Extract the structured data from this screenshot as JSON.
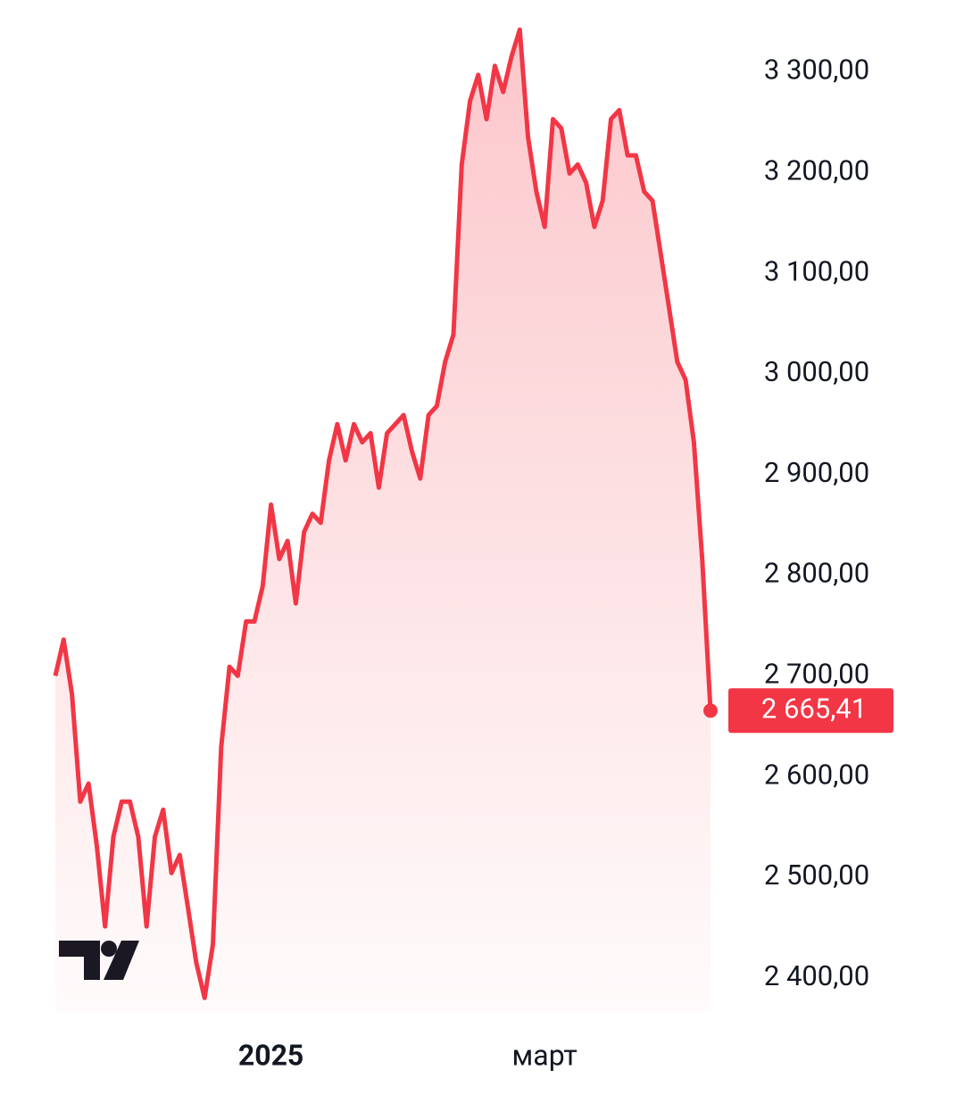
{
  "chart_data": {
    "type": "line",
    "color": "#f23645",
    "fill": true,
    "categories": [
      null,
      null,
      null,
      null,
      null,
      null,
      null,
      null,
      null,
      null,
      null,
      null,
      null,
      null,
      null,
      null,
      null,
      null,
      null,
      null,
      null,
      null,
      null,
      null,
      null,
      null,
      "2025",
      null,
      null,
      null,
      null,
      null,
      null,
      null,
      null,
      null,
      null,
      null,
      null,
      null,
      null,
      null,
      null,
      null,
      null,
      null,
      null,
      null,
      null,
      null,
      null,
      null,
      null,
      null,
      null,
      null,
      null,
      null,
      null,
      "март",
      null,
      null,
      null,
      null,
      null,
      null,
      null,
      null,
      null,
      null,
      null,
      null,
      null,
      null,
      null,
      null,
      null,
      null,
      null,
      null
    ],
    "values": [
      2700,
      2736,
      2682,
      2575,
      2593,
      2531,
      2451,
      2540,
      2575,
      2575,
      2540,
      2451,
      2540,
      2567,
      2504,
      2522,
      2469,
      2415,
      2380,
      2433,
      2629,
      2709,
      2700,
      2754,
      2754,
      2789,
      2870,
      2816,
      2834,
      2772,
      2843,
      2861,
      2852,
      2914,
      2950,
      2914,
      2950,
      2932,
      2941,
      2887,
      2941,
      2950,
      2959,
      2923,
      2896,
      2959,
      2968,
      3012,
      3039,
      3208,
      3271,
      3297,
      3253,
      3306,
      3280,
      3315,
      3342,
      3235,
      3181,
      3146,
      3253,
      3244,
      3199,
      3208,
      3190,
      3146,
      3172,
      3253,
      3262,
      3217,
      3217,
      3181,
      3172,
      3119,
      3066,
      3012,
      2994,
      2932,
      2816,
      2665.41
    ],
    "value_labels": [
      null,
      null,
      null,
      null,
      null,
      null,
      null,
      null,
      null,
      null,
      null,
      null,
      null,
      null,
      null,
      null,
      null,
      null,
      null,
      null,
      null,
      null,
      null,
      null,
      null,
      null,
      null,
      null,
      null,
      null,
      null,
      null,
      null,
      null,
      null,
      null,
      null,
      null,
      null,
      null,
      null,
      null,
      null,
      null,
      null,
      null,
      null,
      null,
      null,
      null,
      null,
      null,
      null,
      null,
      null,
      null,
      null,
      null,
      null,
      null,
      null,
      null,
      null,
      null,
      null,
      null,
      null,
      null,
      null,
      null,
      null,
      null,
      null,
      null,
      null,
      null,
      null,
      null,
      null,
      "2 665,41"
    ],
    "ylim": [
      2366,
      3351
    ],
    "yticks": [
      {
        "value": 2400,
        "label": "2 400,00"
      },
      {
        "value": 2500,
        "label": "2 500,00"
      },
      {
        "value": 2600,
        "label": "2 600,00"
      },
      {
        "value": 2700,
        "label": "2 700,00"
      },
      {
        "value": 2800,
        "label": "2 800,00"
      },
      {
        "value": 2900,
        "label": "2 900,00"
      },
      {
        "value": 3000,
        "label": "3 000,00"
      },
      {
        "value": 3100,
        "label": "3 100,00"
      },
      {
        "value": 3200,
        "label": "3 200,00"
      },
      {
        "value": 3300,
        "label": "3 300,00"
      }
    ],
    "grid": false
  }
}
